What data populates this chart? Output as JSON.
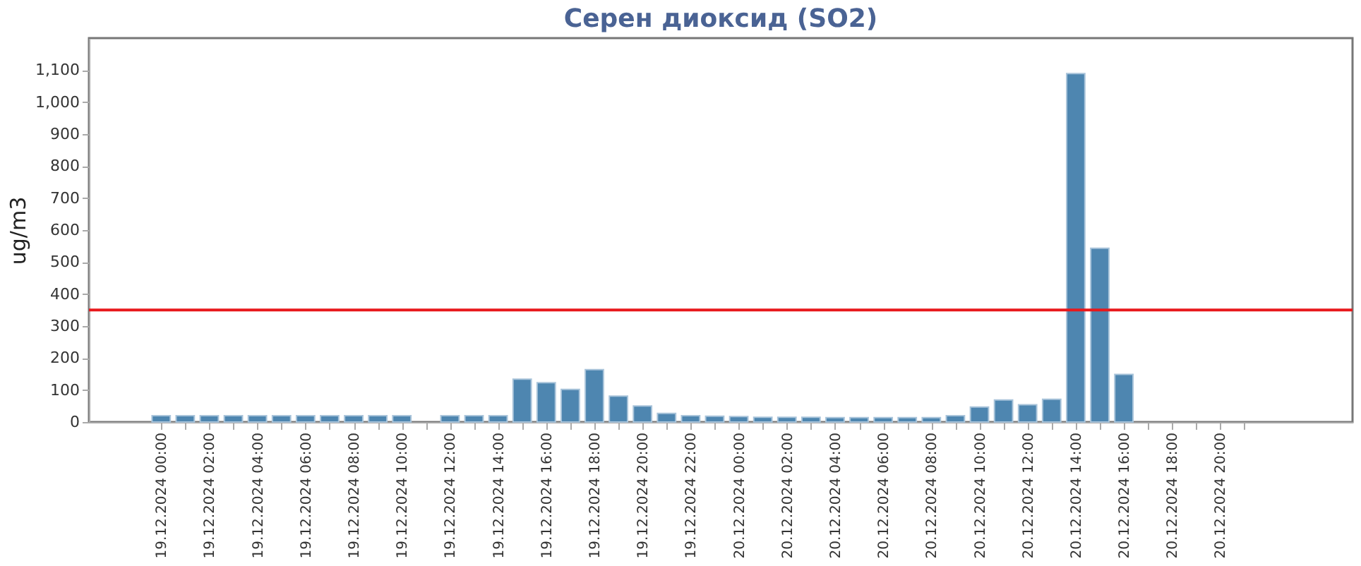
{
  "chart_data": {
    "type": "bar",
    "title": "Серен диоксид (SO2)",
    "ylabel": "ug/m3",
    "x": [
      "2024-12-19T00:00",
      "2024-12-19T01:00",
      "2024-12-19T02:00",
      "2024-12-19T03:00",
      "2024-12-19T04:00",
      "2024-12-19T05:00",
      "2024-12-19T06:00",
      "2024-12-19T07:00",
      "2024-12-19T08:00",
      "2024-12-19T09:00",
      "2024-12-19T10:00",
      "2024-12-19T11:00",
      "2024-12-19T12:00",
      "2024-12-19T13:00",
      "2024-12-19T14:00",
      "2024-12-19T15:00",
      "2024-12-19T16:00",
      "2024-12-19T17:00",
      "2024-12-19T18:00",
      "2024-12-19T19:00",
      "2024-12-19T20:00",
      "2024-12-19T21:00",
      "2024-12-19T22:00",
      "2024-12-19T23:00",
      "2024-12-20T00:00",
      "2024-12-20T01:00",
      "2024-12-20T02:00",
      "2024-12-20T03:00",
      "2024-12-20T04:00",
      "2024-12-20T05:00",
      "2024-12-20T06:00",
      "2024-12-20T07:00",
      "2024-12-20T08:00",
      "2024-12-20T09:00",
      "2024-12-20T10:00",
      "2024-12-20T11:00",
      "2024-12-20T12:00",
      "2024-12-20T13:00",
      "2024-12-20T14:00",
      "2024-12-20T15:00",
      "2024-12-20T16:00"
    ],
    "values": [
      20,
      20,
      20,
      20,
      20,
      20,
      20,
      20,
      20,
      20,
      20,
      null,
      20,
      20,
      20,
      134,
      123,
      102,
      164,
      81,
      50,
      27,
      20,
      18,
      17,
      15,
      15,
      15,
      14,
      14,
      14,
      14,
      14,
      20,
      47,
      69,
      54,
      71,
      1089,
      543,
      149
    ],
    "color": "#4e86b0",
    "xlim": [
      "2024-12-18T21:00",
      "2024-12-21T01:30"
    ],
    "xticks": [
      {
        "value": "2024-12-19T00:00",
        "label": "19.12.2024 00:00"
      },
      {
        "value": "2024-12-19T01:00",
        "label": null
      },
      {
        "value": "2024-12-19T02:00",
        "label": "19.12.2024 02:00"
      },
      {
        "value": "2024-12-19T03:00",
        "label": null
      },
      {
        "value": "2024-12-19T04:00",
        "label": "19.12.2024 04:00"
      },
      {
        "value": "2024-12-19T05:00",
        "label": null
      },
      {
        "value": "2024-12-19T06:00",
        "label": "19.12.2024 06:00"
      },
      {
        "value": "2024-12-19T07:00",
        "label": null
      },
      {
        "value": "2024-12-19T08:00",
        "label": "19.12.2024 08:00"
      },
      {
        "value": "2024-12-19T09:00",
        "label": null
      },
      {
        "value": "2024-12-19T10:00",
        "label": "19.12.2024 10:00"
      },
      {
        "value": "2024-12-19T11:00",
        "label": null
      },
      {
        "value": "2024-12-19T12:00",
        "label": "19.12.2024 12:00"
      },
      {
        "value": "2024-12-19T13:00",
        "label": null
      },
      {
        "value": "2024-12-19T14:00",
        "label": "19.12.2024 14:00"
      },
      {
        "value": "2024-12-19T15:00",
        "label": null
      },
      {
        "value": "2024-12-19T16:00",
        "label": "19.12.2024 16:00"
      },
      {
        "value": "2024-12-19T17:00",
        "label": null
      },
      {
        "value": "2024-12-19T18:00",
        "label": "19.12.2024 18:00"
      },
      {
        "value": "2024-12-19T19:00",
        "label": null
      },
      {
        "value": "2024-12-19T20:00",
        "label": "19.12.2024 20:00"
      },
      {
        "value": "2024-12-19T21:00",
        "label": null
      },
      {
        "value": "2024-12-19T22:00",
        "label": "19.12.2024 22:00"
      },
      {
        "value": "2024-12-19T23:00",
        "label": null
      },
      {
        "value": "2024-12-20T00:00",
        "label": "20.12.2024 00:00"
      },
      {
        "value": "2024-12-20T01:00",
        "label": null
      },
      {
        "value": "2024-12-20T02:00",
        "label": "20.12.2024 02:00"
      },
      {
        "value": "2024-12-20T03:00",
        "label": null
      },
      {
        "value": "2024-12-20T04:00",
        "label": "20.12.2024 04:00"
      },
      {
        "value": "2024-12-20T05:00",
        "label": null
      },
      {
        "value": "2024-12-20T06:00",
        "label": "20.12.2024 06:00"
      },
      {
        "value": "2024-12-20T07:00",
        "label": null
      },
      {
        "value": "2024-12-20T08:00",
        "label": "20.12.2024 08:00"
      },
      {
        "value": "2024-12-20T09:00",
        "label": null
      },
      {
        "value": "2024-12-20T10:00",
        "label": "20.12.2024 10:00"
      },
      {
        "value": "2024-12-20T11:00",
        "label": null
      },
      {
        "value": "2024-12-20T12:00",
        "label": "20.12.2024 12:00"
      },
      {
        "value": "2024-12-20T13:00",
        "label": null
      },
      {
        "value": "2024-12-20T14:00",
        "label": "20.12.2024 14:00"
      },
      {
        "value": "2024-12-20T15:00",
        "label": null
      },
      {
        "value": "2024-12-20T16:00",
        "label": "20.12.2024 16:00"
      },
      {
        "value": "2024-12-20T17:00",
        "label": null
      },
      {
        "value": "2024-12-20T18:00",
        "label": "20.12.2024 18:00"
      },
      {
        "value": "2024-12-20T19:00",
        "label": null
      },
      {
        "value": "2024-12-20T20:00",
        "label": "20.12.2024 20:00"
      },
      {
        "value": "2024-12-20T21:00",
        "label": null
      }
    ],
    "ylim": [
      0,
      1200
    ],
    "yticks": [
      0,
      100,
      200,
      300,
      400,
      500,
      600,
      700,
      800,
      900,
      {
        "value": 1000,
        "label": "1,000"
      },
      {
        "value": 1100,
        "label": "1,100"
      }
    ],
    "ref_lines": [
      {
        "axis": "y",
        "value": 350,
        "color": "#e8191c"
      }
    ],
    "grid": false
  }
}
